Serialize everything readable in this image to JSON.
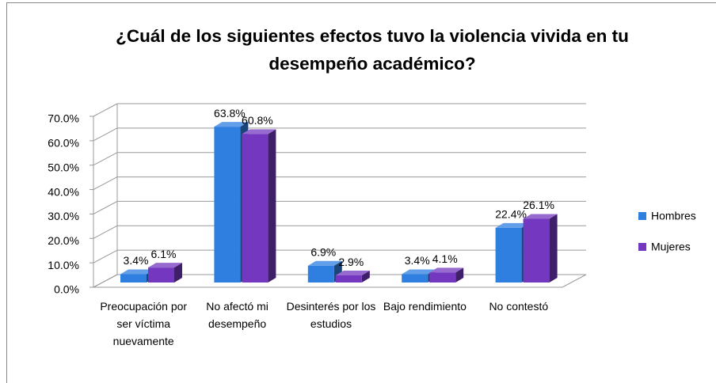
{
  "chart_data": {
    "type": "bar3d",
    "title": "¿Cuál de los siguientes efectos tuvo la violencia vivida en tu desempeño académico?",
    "categories": [
      "Preocupación por ser víctima nuevamente",
      "No afectó mi desempeño",
      "Desinterés por los estudios",
      "Bajo rendimiento",
      "No contestó"
    ],
    "series": [
      {
        "name": "Hombres",
        "color": "#2f7fe0",
        "values": [
          3.4,
          63.8,
          6.9,
          3.4,
          22.4
        ],
        "value_labels": [
          "3.4%",
          "63.8%",
          "6.9%",
          "3.4%",
          "22.4%"
        ]
      },
      {
        "name": "Mujeres",
        "color": "#7438c0",
        "values": [
          6.1,
          60.8,
          2.9,
          4.1,
          26.1
        ],
        "value_labels": [
          "6.1%",
          "60.8%",
          "2.9%",
          "4.1%",
          "26.1%"
        ]
      }
    ],
    "ylim": [
      0,
      70
    ],
    "yticks": [
      {
        "value": 0,
        "label": "0.0%"
      },
      {
        "value": 10,
        "label": "10.0%"
      },
      {
        "value": 20,
        "label": "20.0%"
      },
      {
        "value": 30,
        "label": "30.0%"
      },
      {
        "value": 40,
        "label": "40.0%"
      },
      {
        "value": 50,
        "label": "50.0%"
      },
      {
        "value": 60,
        "label": "60.0%"
      },
      {
        "value": 70,
        "label": "70.0%"
      }
    ],
    "grid": true,
    "legend": "right"
  }
}
